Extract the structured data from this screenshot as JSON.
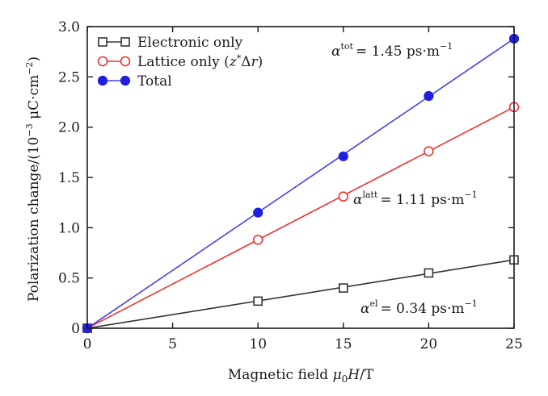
{
  "chart_data": {
    "type": "line",
    "title": "",
    "xlabel": "Magnetic field μ₀H/T",
    "ylabel": "Polarization change/(10⁻³ μC·cm⁻²)",
    "xlim": [
      0,
      25
    ],
    "ylim": [
      0,
      3.0
    ],
    "x_ticks": [
      0,
      5,
      10,
      15,
      20,
      25
    ],
    "x_tick_labels": [
      "0",
      "5",
      "10",
      "15",
      "20",
      "25"
    ],
    "y_ticks": [
      0,
      0.5,
      1.0,
      1.5,
      2.0,
      2.5,
      3.0
    ],
    "y_tick_labels": [
      "0",
      "0.5",
      "1.0",
      "1.5",
      "2.0",
      "2.5",
      "3.0"
    ],
    "grid": false,
    "legend_position": "top-left",
    "series": [
      {
        "name": "Electronic only",
        "color": "#333333",
        "marker": "open-square",
        "points": [
          [
            0,
            0
          ],
          [
            10,
            0.27
          ],
          [
            15,
            0.4
          ],
          [
            20,
            0.55
          ],
          [
            25,
            0.68
          ]
        ],
        "fit_line": [
          [
            0,
            0
          ],
          [
            25,
            0.68
          ]
        ]
      },
      {
        "name": "Lattice only (z*Δr)",
        "color": "#ee3333",
        "marker": "open-circle",
        "points": [
          [
            0,
            0
          ],
          [
            10,
            0.88
          ],
          [
            15,
            1.31
          ],
          [
            20,
            1.76
          ],
          [
            25,
            2.2
          ]
        ],
        "fit_line": [
          [
            0,
            0
          ],
          [
            25,
            2.2
          ]
        ]
      },
      {
        "name": "Total",
        "color": "#1f1fe0",
        "line_color": "#4040ee",
        "marker": "filled-circle",
        "points": [
          [
            0,
            0
          ],
          [
            10,
            1.15
          ],
          [
            15,
            1.71
          ],
          [
            20,
            2.31
          ],
          [
            25,
            2.88
          ]
        ],
        "fit_line": [
          [
            0,
            0
          ],
          [
            25,
            2.88
          ]
        ]
      }
    ],
    "annotations": [
      {
        "id": "tot",
        "symbol": "α",
        "sup": "tot",
        "text": "= 1.45 ps·m",
        "unit_sup": "−1"
      },
      {
        "id": "latt",
        "symbol": "α",
        "sup": "latt",
        "text": "= 1.11 ps·m",
        "unit_sup": "−1"
      },
      {
        "id": "el",
        "symbol": "α",
        "sup": "el",
        "text": "= 0.34 ps·m",
        "unit_sup": "−1"
      }
    ]
  }
}
